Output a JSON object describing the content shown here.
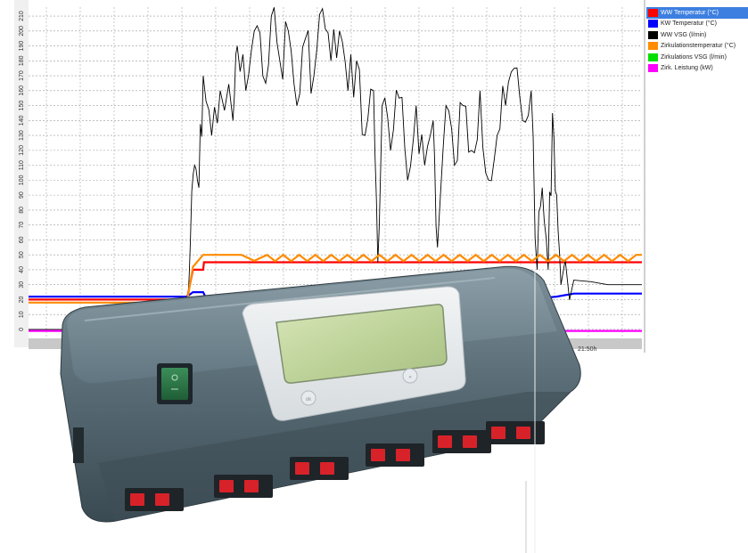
{
  "chart_data": {
    "type": "line",
    "y_ticks": [
      "0",
      "10",
      "20",
      "30",
      "40",
      "50",
      "60",
      "70",
      "80",
      "90",
      "100",
      "110",
      "120",
      "130",
      "140",
      "150",
      "160",
      "170",
      "180",
      "190",
      "200",
      "210"
    ],
    "ylim": [
      -6,
      216
    ],
    "x_tick_label": "21:50h",
    "grid": true,
    "legend_position": "right",
    "series": [
      {
        "name": "WW Temperatur (°C)",
        "color": "#ff0000",
        "values": [
          [
            0,
            20
          ],
          [
            186,
            20
          ],
          [
            193,
            40
          ],
          [
            205,
            40
          ],
          [
            206,
            45
          ],
          [
            720,
            45
          ]
        ]
      },
      {
        "name": "KW Temperatur (°C)",
        "color": "#0000ff",
        "values": [
          [
            0,
            22
          ],
          [
            186,
            22
          ],
          [
            193,
            25
          ],
          [
            205,
            25
          ],
          [
            210,
            19
          ],
          [
            230,
            18
          ],
          [
            240,
            20
          ],
          [
            260,
            20
          ],
          [
            275,
            19
          ],
          [
            300,
            20
          ],
          [
            330,
            21
          ],
          [
            600,
            21
          ],
          [
            620,
            22
          ],
          [
            640,
            24
          ],
          [
            720,
            24
          ]
        ]
      },
      {
        "name": "WW VSG (l/min)",
        "color": "#000000",
        "values": [
          [
            0,
            0
          ],
          [
            186,
            0
          ],
          [
            190,
            60
          ],
          [
            195,
            110
          ],
          [
            200,
            95
          ],
          [
            205,
            170
          ],
          [
            215,
            130
          ],
          [
            225,
            160
          ],
          [
            240,
            140
          ],
          [
            245,
            190
          ],
          [
            255,
            160
          ],
          [
            265,
            200
          ],
          [
            275,
            170
          ],
          [
            285,
            210
          ],
          [
            295,
            180
          ],
          [
            305,
            200
          ],
          [
            315,
            150
          ],
          [
            325,
            195
          ],
          [
            335,
            170
          ],
          [
            345,
            215
          ],
          [
            355,
            180
          ],
          [
            365,
            200
          ],
          [
            375,
            160
          ],
          [
            385,
            180
          ],
          [
            395,
            130
          ],
          [
            405,
            160
          ],
          [
            410,
            45
          ],
          [
            415,
            150
          ],
          [
            425,
            120
          ],
          [
            435,
            155
          ],
          [
            445,
            100
          ],
          [
            455,
            150
          ],
          [
            465,
            110
          ],
          [
            475,
            140
          ],
          [
            480,
            55
          ],
          [
            490,
            150
          ],
          [
            500,
            110
          ],
          [
            510,
            150
          ],
          [
            520,
            120
          ],
          [
            530,
            160
          ],
          [
            540,
            100
          ],
          [
            550,
            130
          ],
          [
            560,
            150
          ],
          [
            570,
            175
          ],
          [
            580,
            140
          ],
          [
            590,
            160
          ],
          [
            597,
            40
          ],
          [
            603,
            95
          ],
          [
            610,
            40
          ],
          [
            615,
            145
          ],
          [
            620,
            90
          ],
          [
            625,
            30
          ],
          [
            640,
            33
          ],
          [
            660,
            32
          ],
          [
            680,
            30
          ],
          [
            700,
            30
          ],
          [
            720,
            30
          ]
        ]
      },
      {
        "name": "Zirkulationstemperatur (°C)",
        "color": "#ff8c00",
        "values": [
          [
            0,
            18
          ],
          [
            186,
            18
          ],
          [
            193,
            42
          ],
          [
            205,
            50
          ],
          [
            220,
            50
          ],
          [
            235,
            50
          ],
          [
            250,
            50
          ],
          [
            265,
            46
          ],
          [
            280,
            50
          ],
          [
            720,
            50
          ]
        ]
      },
      {
        "name": "Zirkulations VSG (l/min)",
        "color": "#00e000",
        "values": []
      },
      {
        "name": "Zirk. Leistung (kW)",
        "color": "#ff00ff",
        "values": [
          [
            0,
            -1
          ],
          [
            720,
            -1
          ]
        ]
      }
    ]
  },
  "device": {
    "brand_marks": [
      "ok",
      "»"
    ],
    "screen_state": "blank"
  }
}
